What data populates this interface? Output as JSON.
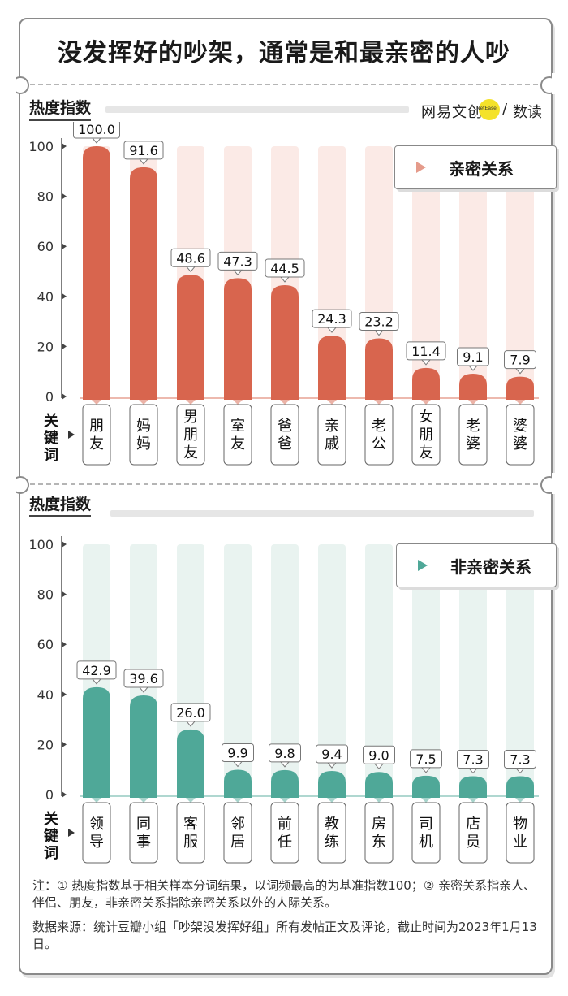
{
  "title": "没发挥好的吵架，通常是和最亲密的人吵",
  "logo": {
    "brand": "网易文创",
    "badge": "NetEase",
    "sep": "/",
    "sub": "数读"
  },
  "axis_label": "关键词",
  "colors": {
    "intimate": "#d8654e",
    "intimate_bg": "#fbeae6",
    "non_intimate": "#4fa898",
    "non_intimate_bg": "#e9f3f0"
  },
  "chart_data": [
    {
      "type": "bar",
      "title": "热度指数",
      "legend": "亲密关系",
      "categories": [
        "朋友",
        "妈妈",
        "男朋友",
        "室友",
        "爸爸",
        "亲戚",
        "老公",
        "女朋友",
        "老婆",
        "婆婆"
      ],
      "values": [
        100.0,
        91.6,
        48.6,
        47.3,
        44.5,
        24.3,
        23.2,
        11.4,
        9.1,
        7.9
      ],
      "value_labels": [
        "100.0",
        "91.6",
        "48.6",
        "47.3",
        "44.5",
        "24.3",
        "23.2",
        "11.4",
        "9.1",
        "7.9"
      ],
      "yticks": [
        "0",
        "20",
        "40",
        "60",
        "80",
        "100"
      ],
      "ylim": [
        0,
        100
      ]
    },
    {
      "type": "bar",
      "title": "热度指数",
      "legend": "非亲密关系",
      "categories": [
        "领导",
        "同事",
        "客服",
        "邻居",
        "前任",
        "教练",
        "房东",
        "司机",
        "店员",
        "物业"
      ],
      "values": [
        42.9,
        39.6,
        26.0,
        9.9,
        9.8,
        9.4,
        9.0,
        7.5,
        7.3,
        7.3
      ],
      "value_labels": [
        "42.9",
        "39.6",
        "26.0",
        "9.9",
        "9.8",
        "9.4",
        "9.0",
        "7.5",
        "7.3",
        "7.3"
      ],
      "yticks": [
        "0",
        "20",
        "40",
        "60",
        "80",
        "100"
      ],
      "ylim": [
        0,
        100
      ]
    }
  ],
  "notes": {
    "note": "注：① 热度指数基于相关样本分词结果，以词频最高的为基准指数100；② 亲密关系指亲人、伴侣、朋友，非亲密关系指除亲密关系以外的人际关系。",
    "source": "数据来源：统计豆瓣小组「吵架没发挥好组」所有发帖正文及评论，截止时间为2023年1月13日。"
  }
}
